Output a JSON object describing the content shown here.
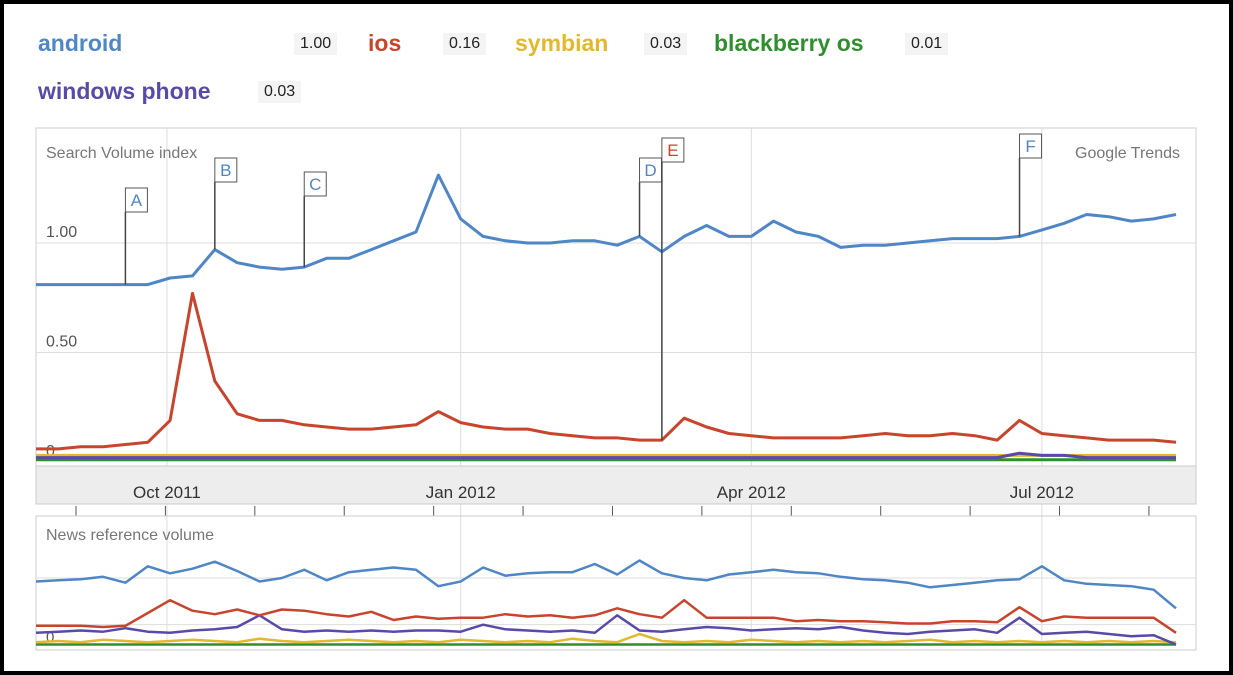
{
  "legend": [
    {
      "name": "android",
      "value": "1.00",
      "color": "#4f86c6"
    },
    {
      "name": "ios",
      "value": "0.16",
      "color": "#c9442c"
    },
    {
      "name": "symbian",
      "value": "0.03",
      "color": "#e2b92c"
    },
    {
      "name": "blackberry os",
      "value": "0.01",
      "color": "#2f8f2f"
    },
    {
      "name": "windows phone",
      "value": "0.03",
      "color": "#5a4aa8"
    }
  ],
  "chart_data": [
    {
      "type": "line",
      "title": "Search Volume index",
      "watermark": "Google Trends",
      "x": [
        "2011-08-21",
        "2011-08-28",
        "2011-09-04",
        "2011-09-11",
        "2011-09-18",
        "2011-09-25",
        "2011-10-02",
        "2011-10-09",
        "2011-10-16",
        "2011-10-23",
        "2011-10-30",
        "2011-11-06",
        "2011-11-13",
        "2011-11-20",
        "2011-11-27",
        "2011-12-04",
        "2011-12-11",
        "2011-12-18",
        "2011-12-25",
        "2012-01-01",
        "2012-01-08",
        "2012-01-15",
        "2012-01-22",
        "2012-01-29",
        "2012-02-05",
        "2012-02-12",
        "2012-02-19",
        "2012-02-26",
        "2012-03-04",
        "2012-03-11",
        "2012-03-18",
        "2012-03-25",
        "2012-04-01",
        "2012-04-08",
        "2012-04-15",
        "2012-04-22",
        "2012-04-29",
        "2012-05-06",
        "2012-05-13",
        "2012-05-20",
        "2012-05-27",
        "2012-06-03",
        "2012-06-10",
        "2012-06-17",
        "2012-06-24",
        "2012-07-01",
        "2012-07-08",
        "2012-07-15",
        "2012-07-22",
        "2012-07-29",
        "2012-08-05",
        "2012-08-12"
      ],
      "x_ticks": [
        "Oct 2011",
        "Jan 2012",
        "Apr 2012",
        "Jul 2012"
      ],
      "y_ticks": [
        "0",
        "0.50",
        "1.00"
      ],
      "ylim": [
        0,
        1.3
      ],
      "grid": true,
      "annotations": [
        "A",
        "B",
        "C",
        "D",
        "E",
        "F"
      ],
      "annotation_colors": [
        "#4f86c6",
        "#4f86c6",
        "#4f86c6",
        "#4f86c6",
        "#c9442c",
        "#4f86c6"
      ],
      "annotation_x": [
        "2011-09-18",
        "2011-10-16",
        "2011-11-13",
        "2012-02-26",
        "2012-03-04",
        "2012-06-24"
      ],
      "annotation_series": [
        0,
        0,
        0,
        0,
        1,
        0
      ],
      "series": [
        {
          "name": "android",
          "color": "#4f86c6",
          "values": [
            0.81,
            0.81,
            0.81,
            0.81,
            0.81,
            0.81,
            0.84,
            0.85,
            0.97,
            0.91,
            0.89,
            0.88,
            0.89,
            0.93,
            0.93,
            0.97,
            1.01,
            1.05,
            1.31,
            1.11,
            1.03,
            1.01,
            1.0,
            1.0,
            1.01,
            1.01,
            0.99,
            1.03,
            0.96,
            1.03,
            1.08,
            1.03,
            1.03,
            1.1,
            1.05,
            1.03,
            0.98,
            0.99,
            0.99,
            1.0,
            1.01,
            1.02,
            1.02,
            1.02,
            1.03,
            1.06,
            1.09,
            1.13,
            1.12,
            1.1,
            1.11,
            1.13
          ]
        },
        {
          "name": "ios",
          "color": "#c9442c",
          "values": [
            0.06,
            0.06,
            0.07,
            0.07,
            0.08,
            0.09,
            0.19,
            0.77,
            0.37,
            0.22,
            0.19,
            0.19,
            0.17,
            0.16,
            0.15,
            0.15,
            0.16,
            0.17,
            0.23,
            0.18,
            0.16,
            0.15,
            0.15,
            0.13,
            0.12,
            0.11,
            0.11,
            0.1,
            0.1,
            0.2,
            0.16,
            0.13,
            0.12,
            0.11,
            0.11,
            0.11,
            0.11,
            0.12,
            0.13,
            0.12,
            0.12,
            0.13,
            0.12,
            0.1,
            0.19,
            0.13,
            0.12,
            0.11,
            0.1,
            0.1,
            0.1,
            0.09
          ]
        },
        {
          "name": "symbian",
          "color": "#e2b92c",
          "values": [
            0.03,
            0.03,
            0.03,
            0.03,
            0.03,
            0.03,
            0.03,
            0.03,
            0.03,
            0.03,
            0.03,
            0.03,
            0.03,
            0.03,
            0.03,
            0.03,
            0.03,
            0.03,
            0.03,
            0.03,
            0.03,
            0.03,
            0.03,
            0.03,
            0.03,
            0.03,
            0.03,
            0.03,
            0.03,
            0.03,
            0.03,
            0.03,
            0.03,
            0.03,
            0.03,
            0.03,
            0.03,
            0.03,
            0.03,
            0.03,
            0.03,
            0.03,
            0.03,
            0.03,
            0.03,
            0.03,
            0.03,
            0.03,
            0.03,
            0.03,
            0.03,
            0.03
          ]
        },
        {
          "name": "blackberry os",
          "color": "#2f8f2f",
          "values": [
            0.01,
            0.01,
            0.01,
            0.01,
            0.01,
            0.01,
            0.01,
            0.01,
            0.01,
            0.01,
            0.01,
            0.01,
            0.01,
            0.01,
            0.01,
            0.01,
            0.01,
            0.01,
            0.01,
            0.01,
            0.01,
            0.01,
            0.01,
            0.01,
            0.01,
            0.01,
            0.01,
            0.01,
            0.01,
            0.01,
            0.01,
            0.01,
            0.01,
            0.01,
            0.01,
            0.01,
            0.01,
            0.01,
            0.01,
            0.01,
            0.01,
            0.01,
            0.01,
            0.01,
            0.01,
            0.01,
            0.01,
            0.01,
            0.01,
            0.01,
            0.01,
            0.01
          ]
        },
        {
          "name": "windows phone",
          "color": "#5a4aa8",
          "values": [
            0.02,
            0.02,
            0.02,
            0.02,
            0.02,
            0.02,
            0.02,
            0.02,
            0.02,
            0.02,
            0.02,
            0.02,
            0.02,
            0.02,
            0.02,
            0.02,
            0.02,
            0.02,
            0.02,
            0.02,
            0.02,
            0.02,
            0.02,
            0.02,
            0.02,
            0.02,
            0.02,
            0.02,
            0.02,
            0.02,
            0.02,
            0.02,
            0.02,
            0.02,
            0.02,
            0.02,
            0.02,
            0.02,
            0.02,
            0.02,
            0.02,
            0.02,
            0.02,
            0.02,
            0.04,
            0.03,
            0.03,
            0.02,
            0.02,
            0.02,
            0.02,
            0.02
          ]
        }
      ]
    },
    {
      "type": "line",
      "title": "News reference volume",
      "y_ticks": [
        "0"
      ],
      "grid": true,
      "series": [
        {
          "name": "android",
          "color": "#4f86c6",
          "values": [
            5.7,
            5.8,
            5.9,
            6.1,
            5.6,
            7.0,
            6.4,
            6.8,
            7.4,
            6.6,
            5.7,
            6.0,
            6.7,
            5.8,
            6.5,
            6.7,
            6.9,
            6.7,
            5.3,
            5.7,
            6.9,
            6.2,
            6.4,
            6.5,
            6.5,
            7.2,
            6.3,
            7.5,
            6.4,
            6.0,
            5.8,
            6.3,
            6.5,
            6.7,
            6.5,
            6.4,
            6.1,
            5.9,
            5.8,
            5.6,
            5.2,
            5.4,
            5.6,
            5.8,
            5.9,
            7.0,
            5.8,
            5.5,
            5.4,
            5.3,
            5.0,
            3.4
          ]
        },
        {
          "name": "ios",
          "color": "#c9442c",
          "values": [
            1.9,
            1.9,
            1.9,
            1.8,
            1.9,
            3.0,
            4.1,
            3.2,
            2.9,
            3.3,
            2.8,
            3.3,
            3.2,
            2.9,
            2.7,
            3.1,
            2.4,
            2.7,
            2.5,
            2.6,
            2.6,
            2.9,
            2.7,
            2.8,
            2.6,
            2.8,
            3.4,
            2.9,
            2.6,
            4.1,
            2.6,
            2.6,
            2.6,
            2.6,
            2.3,
            2.4,
            2.3,
            2.3,
            2.2,
            2.1,
            2.1,
            2.3,
            2.3,
            2.2,
            3.5,
            2.3,
            2.7,
            2.6,
            2.6,
            2.6,
            2.6,
            1.3
          ]
        },
        {
          "name": "symbian",
          "color": "#e2b92c",
          "values": [
            0.5,
            0.6,
            0.5,
            0.7,
            0.6,
            0.5,
            0.6,
            0.7,
            0.6,
            0.5,
            0.8,
            0.6,
            0.5,
            0.6,
            0.7,
            0.6,
            0.5,
            0.6,
            0.5,
            0.7,
            0.6,
            0.5,
            0.6,
            0.5,
            0.8,
            0.6,
            0.5,
            1.2,
            0.6,
            0.5,
            0.6,
            0.5,
            0.7,
            0.6,
            0.5,
            0.6,
            0.5,
            0.6,
            0.5,
            0.6,
            0.7,
            0.5,
            0.6,
            0.5,
            0.6,
            0.5,
            0.6,
            0.5,
            0.6,
            0.5,
            0.6,
            0.5
          ]
        },
        {
          "name": "blackberry os",
          "color": "#2f8f2f",
          "values": [
            0.3,
            0.3,
            0.3,
            0.3,
            0.3,
            0.3,
            0.3,
            0.3,
            0.3,
            0.3,
            0.3,
            0.3,
            0.3,
            0.3,
            0.3,
            0.3,
            0.3,
            0.3,
            0.3,
            0.3,
            0.3,
            0.3,
            0.3,
            0.3,
            0.3,
            0.3,
            0.3,
            0.3,
            0.3,
            0.3,
            0.3,
            0.3,
            0.3,
            0.3,
            0.3,
            0.3,
            0.3,
            0.3,
            0.3,
            0.3,
            0.3,
            0.3,
            0.3,
            0.3,
            0.3,
            0.3,
            0.3,
            0.3,
            0.3,
            0.3,
            0.3,
            0.3
          ]
        },
        {
          "name": "windows phone",
          "color": "#5a4aa8",
          "values": [
            1.3,
            1.4,
            1.5,
            1.4,
            1.7,
            1.4,
            1.3,
            1.5,
            1.6,
            1.8,
            2.8,
            1.6,
            1.4,
            1.5,
            1.4,
            1.5,
            1.4,
            1.5,
            1.5,
            1.4,
            2.0,
            1.6,
            1.5,
            1.4,
            1.5,
            1.3,
            2.8,
            1.5,
            1.4,
            1.6,
            1.8,
            1.7,
            1.5,
            1.6,
            1.7,
            1.6,
            1.8,
            1.5,
            1.3,
            1.2,
            1.4,
            1.5,
            1.6,
            1.3,
            2.6,
            1.2,
            1.3,
            1.4,
            1.2,
            1.0,
            1.1,
            0.3
          ]
        }
      ]
    }
  ]
}
